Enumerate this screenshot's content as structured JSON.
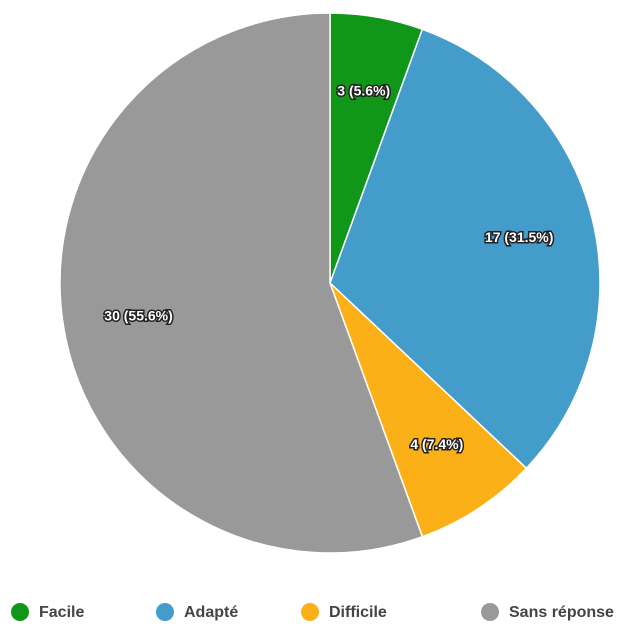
{
  "chart_data": {
    "type": "pie",
    "categories": [
      "Facile",
      "Adapté",
      "Difficile",
      "Sans réponse"
    ],
    "values": [
      3,
      17,
      4,
      30
    ],
    "value_labels": [
      "3 (5.6%)",
      "17 (31.5%)",
      "4 (7.4%)",
      "30 (55.6%)"
    ],
    "colors": [
      "#109618",
      "#439cc9",
      "#fbb018",
      "#999999"
    ],
    "legend": "bottom"
  }
}
